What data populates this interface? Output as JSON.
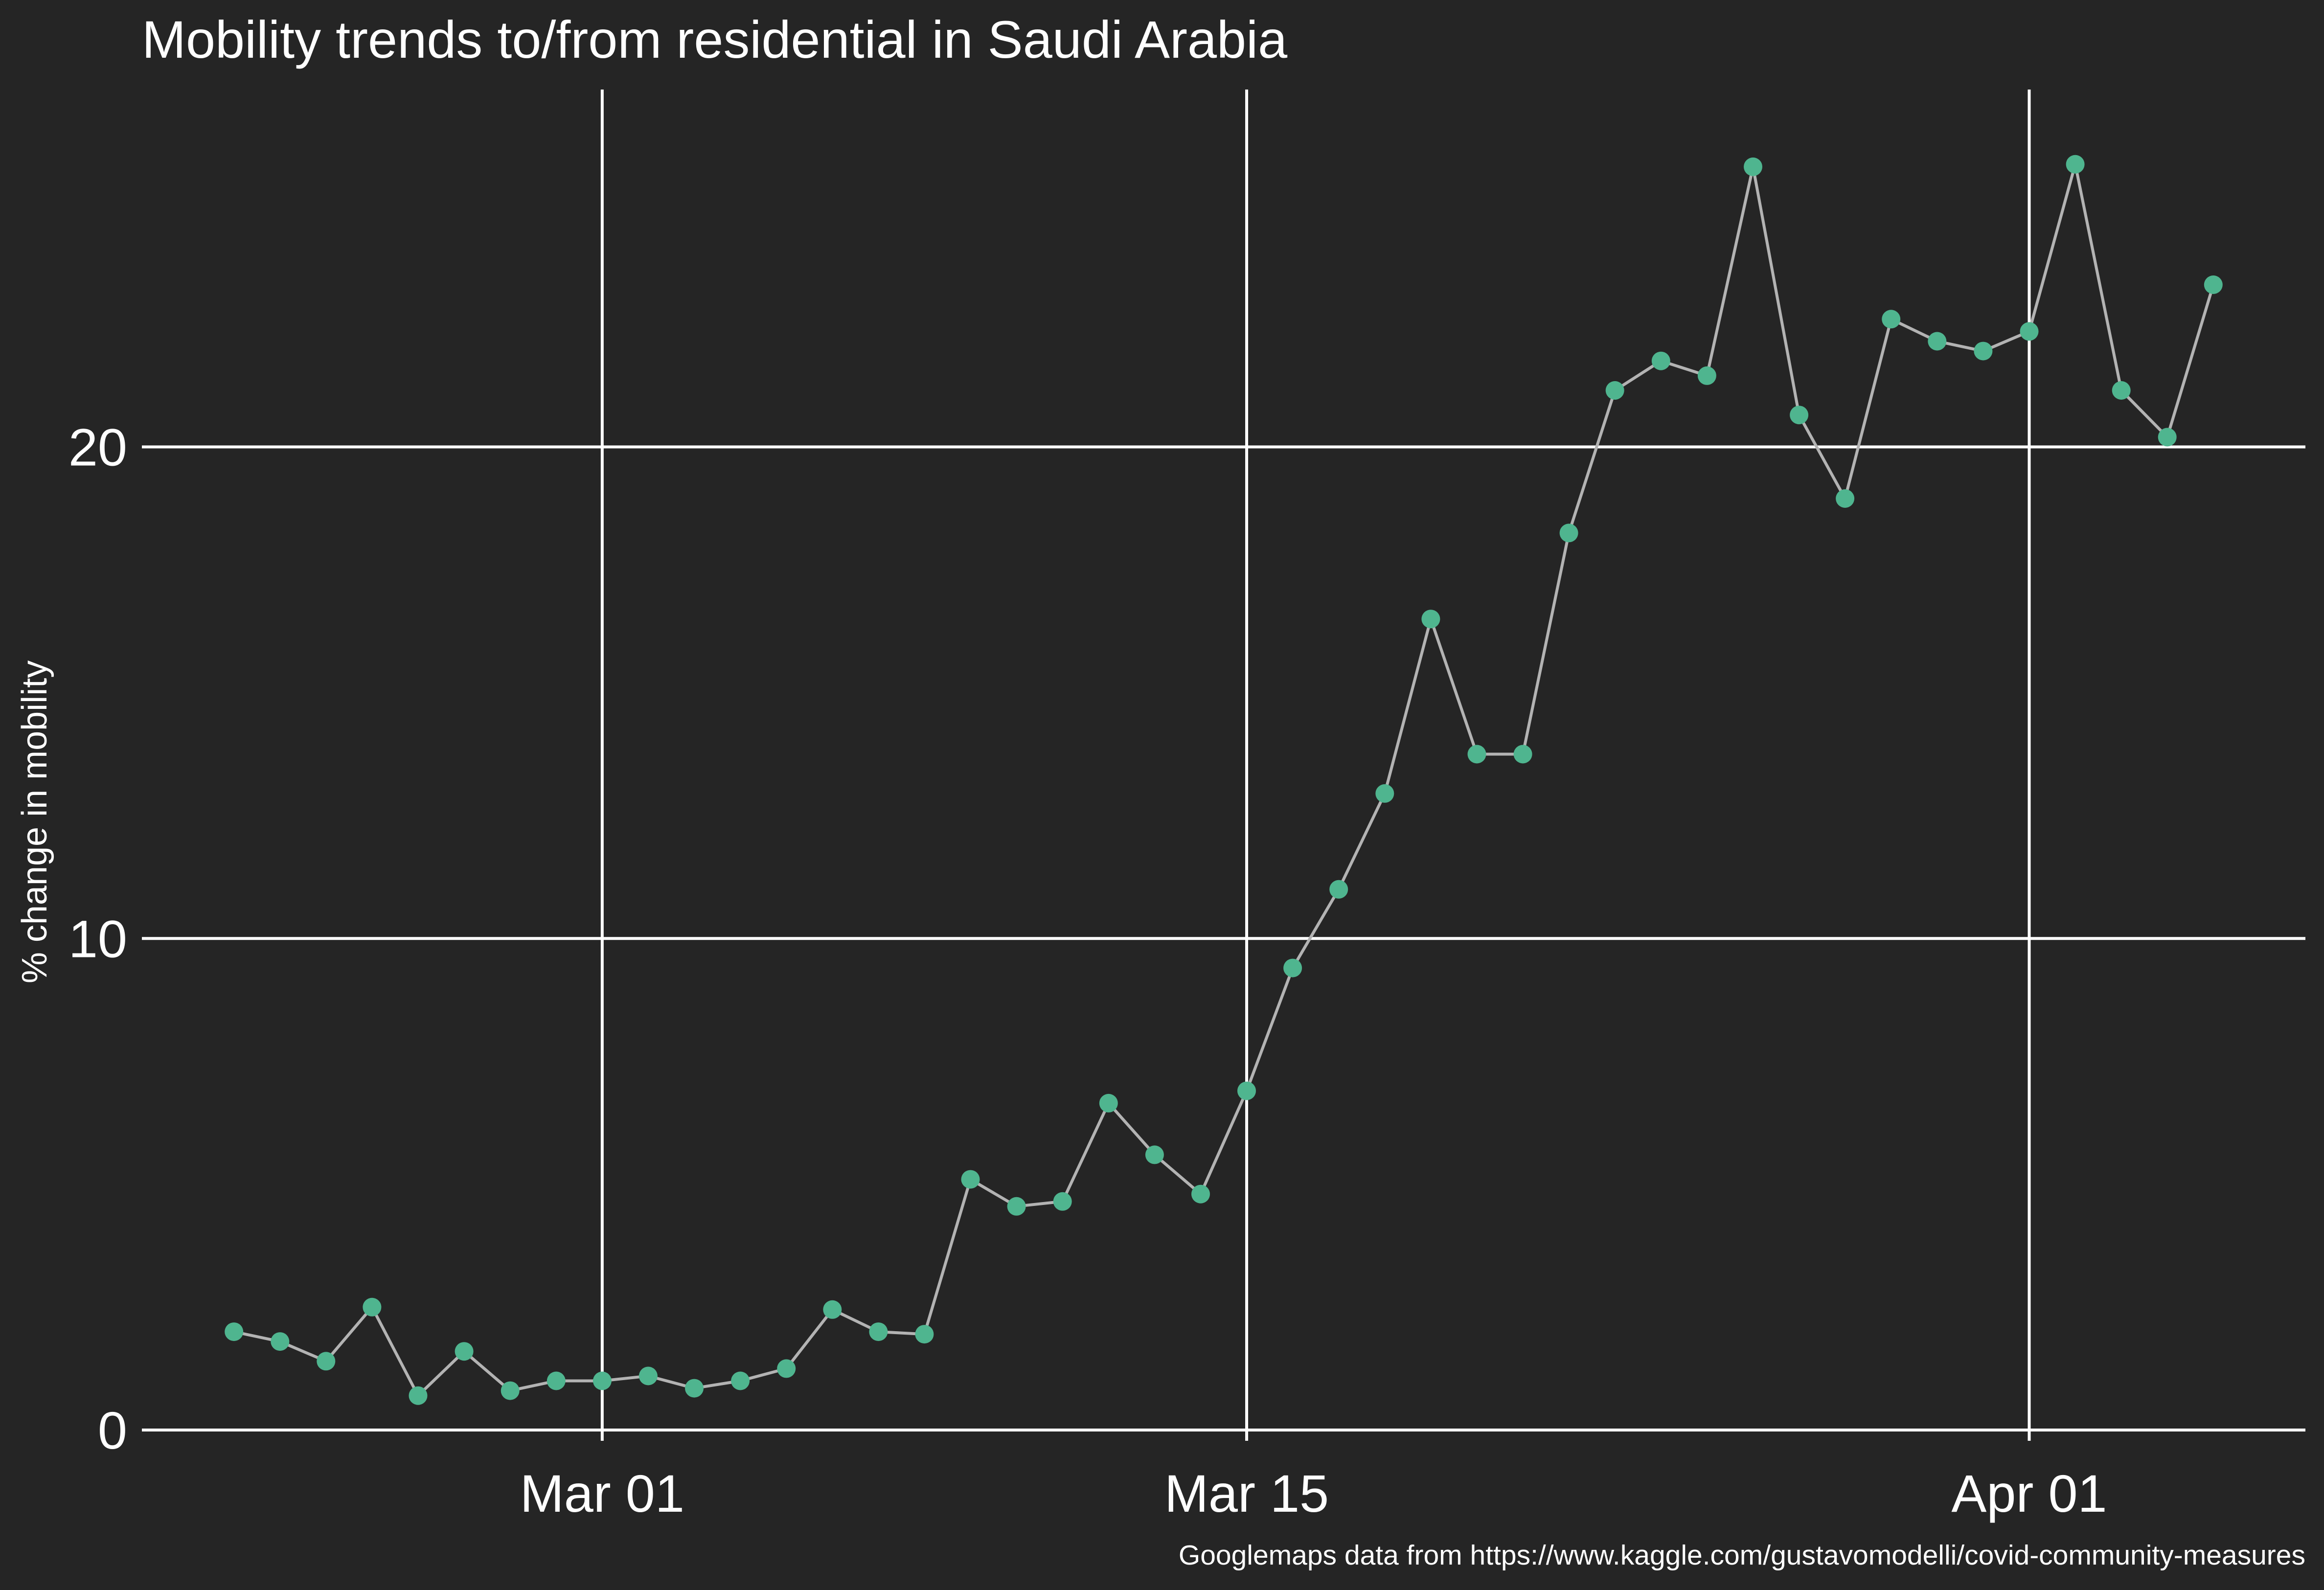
{
  "colors": {
    "background": "#252525",
    "point": "#4fb58f",
    "line": "#b3b3b3",
    "grid": "#ffffff",
    "text": "#ffffff"
  },
  "caption": "Googlemaps data from https://www.kaggle.com/gustavomodelli/covid-community-measures",
  "chart_data": {
    "type": "line",
    "title": "Mobility trends to/from residential in Saudi Arabia",
    "xlabel": "",
    "ylabel": "% change in mobility",
    "x_ticks": [
      {
        "date": "2020-03-01",
        "label": "Mar 01"
      },
      {
        "date": "2020-03-15",
        "label": "Mar 15"
      },
      {
        "date": "2020-04-01",
        "label": "Apr 01"
      }
    ],
    "y_ticks": [
      0,
      10,
      20
    ],
    "xlim": [
      "2020-02-20",
      "2020-04-07"
    ],
    "ylim": [
      0,
      27.5
    ],
    "grid": true,
    "series": [
      {
        "x": [
          "2020-02-22",
          "2020-02-23",
          "2020-02-24",
          "2020-02-25",
          "2020-02-26",
          "2020-02-27",
          "2020-02-28",
          "2020-02-29",
          "2020-03-01",
          "2020-03-02",
          "2020-03-03",
          "2020-03-04",
          "2020-03-05",
          "2020-03-06",
          "2020-03-07",
          "2020-03-08",
          "2020-03-09",
          "2020-03-10",
          "2020-03-11",
          "2020-03-12",
          "2020-03-13",
          "2020-03-14",
          "2020-03-15",
          "2020-03-16",
          "2020-03-17",
          "2020-03-18",
          "2020-03-19",
          "2020-03-20",
          "2020-03-21",
          "2020-03-22",
          "2020-03-23",
          "2020-03-24",
          "2020-03-25",
          "2020-03-26",
          "2020-03-27",
          "2020-03-28",
          "2020-03-29",
          "2020-03-30",
          "2020-03-31",
          "2020-04-01",
          "2020-04-02",
          "2020-04-03",
          "2020-04-04",
          "2020-04-05"
        ],
        "y": [
          2.0,
          1.8,
          1.4,
          2.5,
          0.7,
          1.6,
          0.8,
          1.0,
          1.0,
          1.1,
          0.85,
          1.0,
          1.25,
          2.45,
          2.0,
          1.95,
          5.1,
          4.55,
          4.65,
          6.65,
          5.6,
          4.8,
          6.9,
          9.4,
          11.0,
          12.95,
          16.5,
          13.75,
          13.75,
          18.25,
          21.15,
          21.75,
          21.45,
          25.7,
          20.65,
          18.95,
          22.6,
          22.15,
          21.95,
          22.35,
          25.75,
          21.15,
          20.2,
          23.3
        ]
      }
    ]
  }
}
